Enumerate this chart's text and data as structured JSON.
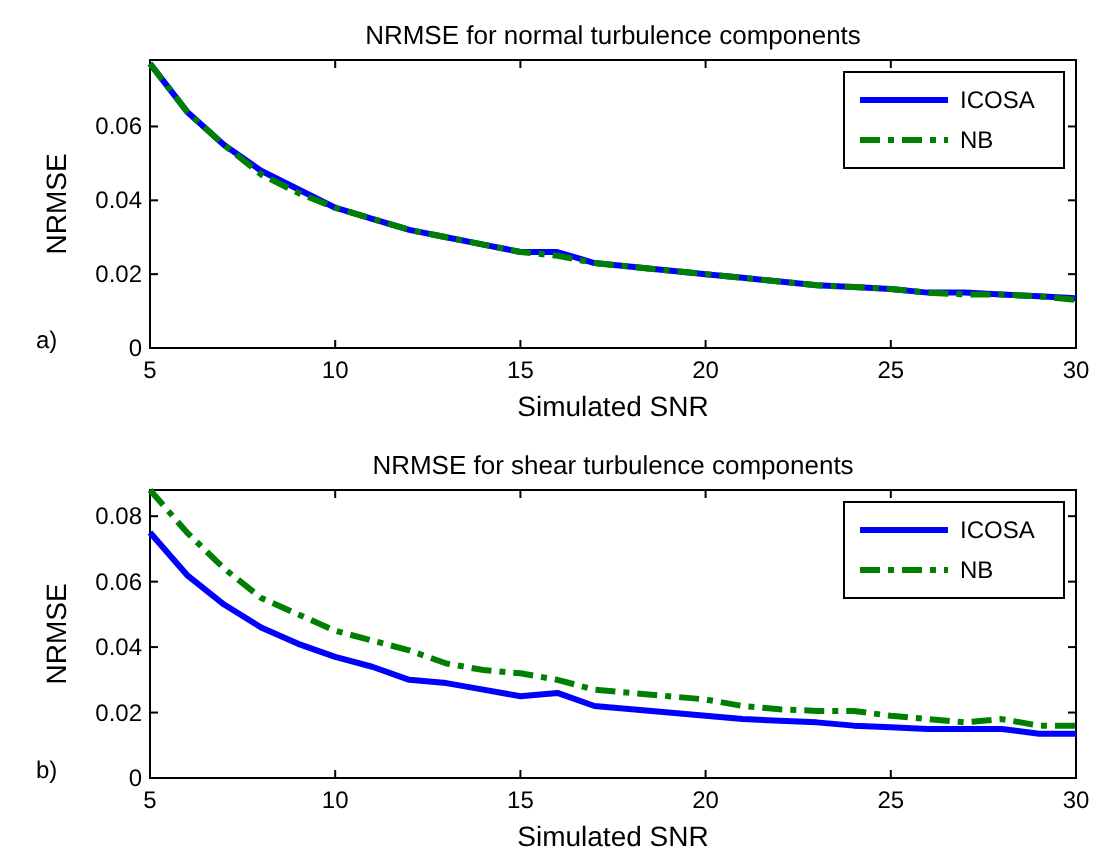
{
  "chart_data": [
    {
      "type": "line",
      "title": "NRMSE for normal turbulence components",
      "xlabel": "Simulated SNR",
      "ylabel": "NRMSE",
      "annotations": [
        "a)"
      ],
      "x": [
        5,
        6,
        7,
        8,
        9,
        10,
        11,
        12,
        13,
        14,
        15,
        16,
        17,
        18,
        19,
        20,
        21,
        22,
        23,
        24,
        25,
        26,
        27,
        28,
        29,
        30
      ],
      "xlim": [
        5,
        30
      ],
      "xticks": [
        5,
        10,
        15,
        20,
        25,
        30
      ],
      "ylim": [
        0,
        0.078
      ],
      "yticks": [
        0,
        0.02,
        0.04,
        0.06
      ],
      "grid": false,
      "legend": "top right",
      "series": [
        {
          "name": "ICOSA",
          "color": "#0000ff",
          "line_style": "solid",
          "values": [
            0.077,
            0.064,
            0.055,
            0.048,
            0.043,
            0.038,
            0.035,
            0.032,
            0.03,
            0.028,
            0.026,
            0.026,
            0.023,
            0.022,
            0.021,
            0.02,
            0.019,
            0.018,
            0.017,
            0.0165,
            0.016,
            0.015,
            0.015,
            0.0145,
            0.014,
            0.0135
          ]
        },
        {
          "name": "NB",
          "color": "#008000",
          "line_style": "dashdot",
          "values": [
            0.077,
            0.064,
            0.055,
            0.047,
            0.042,
            0.038,
            0.035,
            0.032,
            0.03,
            0.028,
            0.026,
            0.025,
            0.023,
            0.022,
            0.021,
            0.02,
            0.019,
            0.018,
            0.017,
            0.0165,
            0.016,
            0.015,
            0.0145,
            0.0145,
            0.014,
            0.013
          ]
        }
      ]
    },
    {
      "type": "line",
      "title": "NRMSE for shear turbulence components",
      "xlabel": "Simulated SNR",
      "ylabel": "NRMSE",
      "annotations": [
        "b)"
      ],
      "x": [
        5,
        6,
        7,
        8,
        9,
        10,
        11,
        12,
        13,
        14,
        15,
        16,
        17,
        18,
        19,
        20,
        21,
        22,
        23,
        24,
        25,
        26,
        27,
        28,
        29,
        30
      ],
      "xlim": [
        5,
        30
      ],
      "xticks": [
        5,
        10,
        15,
        20,
        25,
        30
      ],
      "ylim": [
        0,
        0.088
      ],
      "yticks": [
        0,
        0.02,
        0.04,
        0.06,
        0.08
      ],
      "grid": false,
      "legend": "top right",
      "series": [
        {
          "name": "ICOSA",
          "color": "#0000ff",
          "line_style": "solid",
          "values": [
            0.075,
            0.062,
            0.053,
            0.046,
            0.041,
            0.037,
            0.034,
            0.03,
            0.029,
            0.027,
            0.025,
            0.026,
            0.022,
            0.021,
            0.02,
            0.019,
            0.018,
            0.0175,
            0.017,
            0.016,
            0.0155,
            0.015,
            0.015,
            0.015,
            0.0135,
            0.0135
          ]
        },
        {
          "name": "NB",
          "color": "#008000",
          "line_style": "dashdot",
          "values": [
            0.088,
            0.075,
            0.064,
            0.055,
            0.05,
            0.045,
            0.042,
            0.039,
            0.035,
            0.033,
            0.032,
            0.03,
            0.027,
            0.026,
            0.025,
            0.024,
            0.022,
            0.021,
            0.0205,
            0.0205,
            0.019,
            0.018,
            0.017,
            0.018,
            0.016,
            0.016
          ]
        }
      ]
    }
  ]
}
